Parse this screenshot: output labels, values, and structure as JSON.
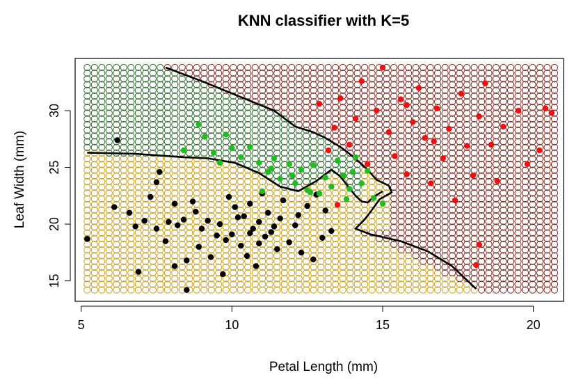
{
  "chart_data": {
    "type": "scatter",
    "title": "KNN classifier with K=5",
    "xlabel": "Petal Length (mm)",
    "ylabel": "Leaf Width (mm)",
    "xlim": [
      4.8,
      21.0
    ],
    "ylim": [
      13.2,
      34.6
    ],
    "xticks": [
      5,
      10,
      15,
      20
    ],
    "yticks": [
      15,
      20,
      25,
      30
    ],
    "legend": "none",
    "grid": false,
    "background_grid": {
      "x_range": [
        5.2,
        20.7
      ],
      "y_range": [
        14.2,
        33.8
      ],
      "nx": 65,
      "ny": 40
    },
    "region_colors": {
      "black": "#c8a01e",
      "green": "#2e6b2e",
      "red": "#7a2a20"
    },
    "series": [
      {
        "color": "#000000",
        "points": [
          [
            5.2,
            18.7
          ],
          [
            6.1,
            21.5
          ],
          [
            6.2,
            27.4
          ],
          [
            6.6,
            21.0
          ],
          [
            6.8,
            19.8
          ],
          [
            6.9,
            15.8
          ],
          [
            7.1,
            20.3
          ],
          [
            7.3,
            22.4
          ],
          [
            7.5,
            23.7
          ],
          [
            7.5,
            19.6
          ],
          [
            7.6,
            24.6
          ],
          [
            7.8,
            18.5
          ],
          [
            7.9,
            20.2
          ],
          [
            8.1,
            16.3
          ],
          [
            8.2,
            19.9
          ],
          [
            8.1,
            21.8
          ],
          [
            8.4,
            20.4
          ],
          [
            8.5,
            16.8
          ],
          [
            8.5,
            14.2
          ],
          [
            8.7,
            22.0
          ],
          [
            8.8,
            21.1
          ],
          [
            8.9,
            18.0
          ],
          [
            9.0,
            19.6
          ],
          [
            9.2,
            20.3
          ],
          [
            9.3,
            17.1
          ],
          [
            9.5,
            19.0
          ],
          [
            9.6,
            20.0
          ],
          [
            9.7,
            15.6
          ],
          [
            9.9,
            22.4
          ],
          [
            10.0,
            19.1
          ],
          [
            10.1,
            21.5
          ],
          [
            10.3,
            18.1
          ],
          [
            10.4,
            20.7
          ],
          [
            10.5,
            17.2
          ],
          [
            10.6,
            21.8
          ],
          [
            10.7,
            19.6
          ],
          [
            10.8,
            16.3
          ],
          [
            10.9,
            20.2
          ],
          [
            11.0,
            22.7
          ],
          [
            11.1,
            18.9
          ],
          [
            11.2,
            21.0
          ],
          [
            11.4,
            19.8
          ],
          [
            11.5,
            17.8
          ],
          [
            11.6,
            20.5
          ],
          [
            11.7,
            22.1
          ],
          [
            11.9,
            18.4
          ],
          [
            12.1,
            19.9
          ],
          [
            12.2,
            20.8
          ],
          [
            12.3,
            17.5
          ],
          [
            12.5,
            21.6
          ],
          [
            12.7,
            16.9
          ],
          [
            12.8,
            22.6
          ],
          [
            13.0,
            18.8
          ],
          [
            13.1,
            21.2
          ],
          [
            13.3,
            19.4
          ],
          [
            10.2,
            20.6
          ],
          [
            9.8,
            18.6
          ],
          [
            10.6,
            19.2
          ],
          [
            10.9,
            18.3
          ],
          [
            11.3,
            19.3
          ]
        ]
      },
      {
        "color": "#22bb22",
        "points": [
          [
            8.9,
            28.8
          ],
          [
            9.1,
            27.7
          ],
          [
            9.4,
            26.3
          ],
          [
            9.8,
            27.9
          ],
          [
            10.0,
            26.7
          ],
          [
            10.3,
            25.9
          ],
          [
            10.6,
            26.8
          ],
          [
            10.9,
            25.4
          ],
          [
            11.2,
            24.6
          ],
          [
            11.4,
            25.8
          ],
          [
            11.6,
            24.0
          ],
          [
            11.9,
            25.3
          ],
          [
            12.1,
            23.6
          ],
          [
            12.3,
            24.8
          ],
          [
            12.5,
            23.0
          ],
          [
            12.7,
            25.2
          ],
          [
            12.9,
            22.7
          ],
          [
            13.1,
            24.1
          ],
          [
            13.3,
            23.3
          ],
          [
            13.5,
            25.6
          ],
          [
            13.7,
            24.3
          ],
          [
            13.9,
            23.1
          ],
          [
            14.1,
            25.9
          ],
          [
            14.3,
            23.6
          ],
          [
            14.5,
            24.7
          ],
          [
            14.7,
            22.3
          ],
          [
            15.0,
            21.8
          ],
          [
            8.4,
            26.5
          ],
          [
            11.0,
            22.9
          ],
          [
            12.6,
            22.8
          ],
          [
            13.8,
            22.2
          ],
          [
            14.0,
            24.6
          ],
          [
            11.3,
            24.9
          ],
          [
            12.0,
            24.3
          ],
          [
            9.6,
            25.4
          ]
        ]
      },
      {
        "color": "#ee1111",
        "points": [
          [
            12.9,
            30.6
          ],
          [
            13.2,
            26.5
          ],
          [
            13.4,
            28.5
          ],
          [
            13.6,
            31.1
          ],
          [
            13.9,
            27.0
          ],
          [
            14.1,
            29.3
          ],
          [
            14.3,
            32.6
          ],
          [
            14.5,
            25.3
          ],
          [
            14.8,
            30.0
          ],
          [
            15.0,
            33.8
          ],
          [
            15.2,
            28.1
          ],
          [
            15.4,
            26.0
          ],
          [
            15.6,
            31.0
          ],
          [
            15.8,
            24.4
          ],
          [
            16.0,
            29.0
          ],
          [
            16.2,
            32.0
          ],
          [
            16.4,
            27.6
          ],
          [
            16.6,
            23.6
          ],
          [
            16.8,
            30.2
          ],
          [
            17.0,
            25.8
          ],
          [
            17.2,
            28.4
          ],
          [
            17.4,
            22.1
          ],
          [
            17.6,
            31.5
          ],
          [
            17.8,
            26.9
          ],
          [
            18.0,
            24.3
          ],
          [
            18.2,
            29.5
          ],
          [
            18.4,
            32.4
          ],
          [
            18.6,
            27.0
          ],
          [
            18.8,
            23.8
          ],
          [
            19.0,
            28.6
          ],
          [
            19.5,
            30.0
          ],
          [
            19.8,
            25.3
          ],
          [
            20.2,
            26.5
          ],
          [
            20.4,
            30.2
          ],
          [
            20.6,
            29.8
          ],
          [
            18.1,
            16.4
          ],
          [
            18.2,
            18.2
          ],
          [
            13.5,
            21.7
          ],
          [
            15.8,
            30.5
          ],
          [
            16.7,
            27.3
          ]
        ]
      }
    ],
    "boundaries": [
      [
        [
          7.8,
          33.8
        ],
        [
          9.0,
          32.6
        ],
        [
          10.2,
          31.3
        ],
        [
          11.4,
          30.0
        ],
        [
          12.1,
          28.6
        ],
        [
          12.7,
          28.1
        ],
        [
          13.1,
          27.6
        ],
        [
          13.6,
          26.8
        ],
        [
          13.9,
          26.2
        ],
        [
          14.3,
          25.3
        ],
        [
          14.5,
          24.8
        ],
        [
          14.8,
          23.9
        ],
        [
          15.2,
          23.4
        ],
        [
          15.3,
          22.8
        ],
        [
          14.9,
          22.2
        ],
        [
          14.6,
          21.1
        ],
        [
          14.4,
          20.4
        ],
        [
          14.1,
          19.6
        ],
        [
          14.6,
          19.1
        ],
        [
          15.6,
          18.5
        ],
        [
          16.5,
          17.6
        ],
        [
          17.3,
          16.3
        ],
        [
          18.1,
          14.3
        ]
      ],
      [
        [
          5.2,
          26.3
        ],
        [
          6.8,
          26.2
        ],
        [
          8.4,
          25.9
        ],
        [
          9.2,
          25.8
        ],
        [
          10.1,
          25.4
        ],
        [
          10.9,
          24.5
        ],
        [
          11.6,
          23.3
        ],
        [
          12.2,
          22.9
        ],
        [
          12.8,
          23.8
        ],
        [
          13.3,
          24.8
        ],
        [
          13.6,
          24.2
        ],
        [
          13.8,
          23.5
        ],
        [
          14.1,
          22.5
        ],
        [
          14.3,
          22.0
        ],
        [
          14.5,
          21.9
        ],
        [
          14.7,
          22.4
        ],
        [
          15.0,
          22.9
        ]
      ]
    ]
  }
}
